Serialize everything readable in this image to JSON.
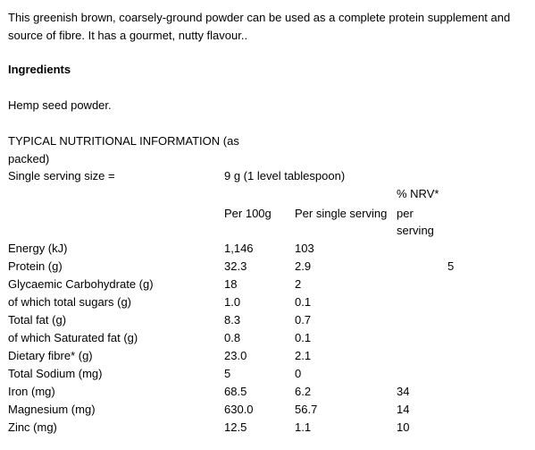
{
  "intro": "This greenish brown, coarsely-ground powder can be used as a complete protein supplement and source of fibre. It has a gourmet, nutty flavour..",
  "ingredients_heading": "Ingredients",
  "ingredients_text": "Hemp seed powder.",
  "info_heading_line1": "TYPICAL NUTRITIONAL INFORMATION (as",
  "info_heading_line2": "packed)",
  "serving": {
    "label": "Single serving size =",
    "value": "9 g (1 level tablespoon)"
  },
  "headers": {
    "nrv": "% NRV*",
    "per100": "Per 100g",
    "perServing": "Per single serving",
    "nrvLine2": "per",
    "nrvLine3": "serving"
  },
  "rows": [
    {
      "name": "Energy (kJ)",
      "per100": "1,146",
      "perServing": "103",
      "nrv": "",
      "extra": ""
    },
    {
      "name": "Protein (g)",
      "per100": "32.3",
      "perServing": "2.9",
      "nrv": "",
      "extra": "5"
    },
    {
      "name": "Glycaemic Carbohydrate (g)",
      "per100": "18",
      "perServing": "2",
      "nrv": "",
      "extra": ""
    },
    {
      "name": "of which total sugars (g)",
      "per100": "1.0",
      "perServing": "0.1",
      "nrv": "",
      "extra": ""
    },
    {
      "name": "Total fat (g)",
      "per100": "8.3",
      "perServing": "0.7",
      "nrv": "",
      "extra": ""
    },
    {
      "name": "of which Saturated fat (g)",
      "per100": "0.8",
      "perServing": "0.1",
      "nrv": "",
      "extra": ""
    },
    {
      "name": "Dietary fibre* (g)",
      "per100": "23.0",
      "perServing": "2.1",
      "nrv": "",
      "extra": ""
    },
    {
      "name": "Total Sodium (mg)",
      "per100": "5",
      "perServing": "0",
      "nrv": "",
      "extra": ""
    },
    {
      "name": "Iron (mg)",
      "per100": "68.5",
      "perServing": "6.2",
      "nrv": "34",
      "extra": ""
    },
    {
      "name": "Magnesium (mg)",
      "per100": "630.0",
      "perServing": "56.7",
      "nrv": "14",
      "extra": ""
    },
    {
      "name": "Zinc (mg)",
      "per100": "12.5",
      "perServing": "1.1",
      "nrv": "10",
      "extra": ""
    }
  ]
}
